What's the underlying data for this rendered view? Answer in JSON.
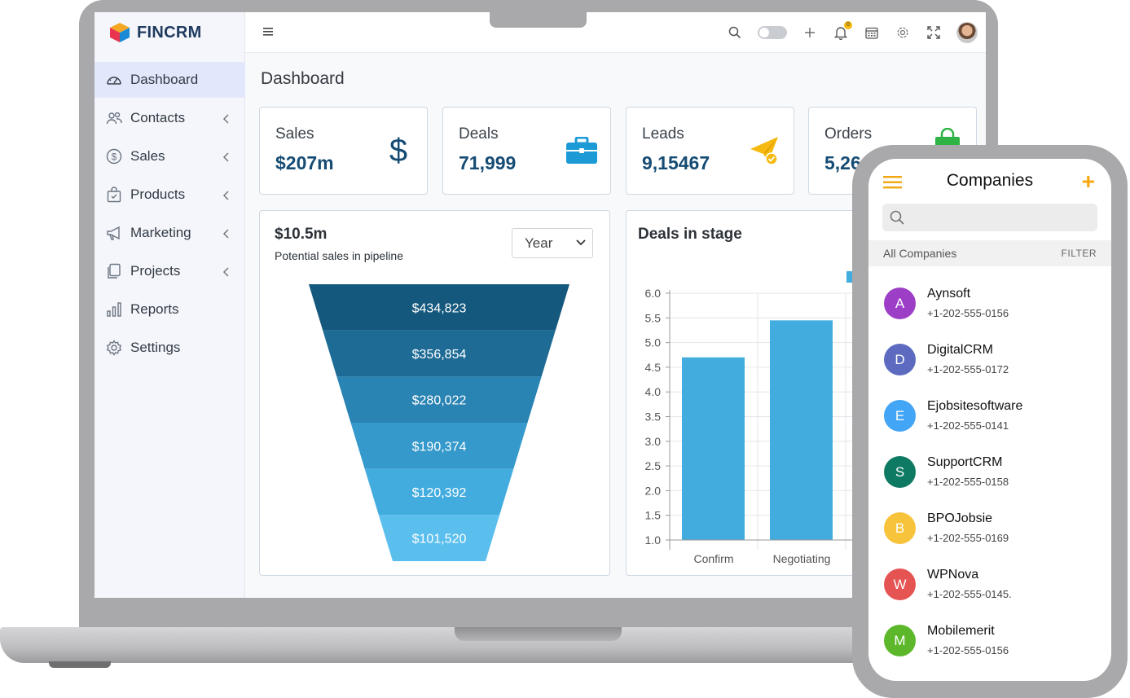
{
  "brand": {
    "name": "FINCRM"
  },
  "sidebar": {
    "items": [
      {
        "label": "Dashboard",
        "icon": "dashboard-icon",
        "active": true,
        "chevron": false
      },
      {
        "label": "Contacts",
        "icon": "users-icon",
        "active": false,
        "chevron": true
      },
      {
        "label": "Sales",
        "icon": "dollar-icon",
        "active": false,
        "chevron": true
      },
      {
        "label": "Products",
        "icon": "bag-icon",
        "active": false,
        "chevron": true
      },
      {
        "label": "Marketing",
        "icon": "megaphone-icon",
        "active": false,
        "chevron": true
      },
      {
        "label": "Projects",
        "icon": "copy-icon",
        "active": false,
        "chevron": true
      },
      {
        "label": "Reports",
        "icon": "bar-chart-icon",
        "active": false,
        "chevron": false
      },
      {
        "label": "Settings",
        "icon": "gear-icon",
        "active": false,
        "chevron": false
      }
    ]
  },
  "header": {
    "notification_count": "0"
  },
  "page": {
    "title": "Dashboard"
  },
  "stats": [
    {
      "label": "Sales",
      "value": "$207m",
      "icon": "dollar-sign-icon",
      "color": "#164c74"
    },
    {
      "label": "Deals",
      "value": "71,999",
      "icon": "briefcase-icon",
      "color": "#1b9ad6"
    },
    {
      "label": "Leads",
      "value": "9,15467",
      "icon": "paper-plane-icon",
      "color": "#f5b90f"
    },
    {
      "label": "Orders",
      "value": "5,26",
      "icon": "shopping-bag-icon",
      "color": "#2fb344"
    }
  ],
  "funnel": {
    "amount": "$10.5m",
    "subtitle": "Potential sales in pipeline",
    "period": "Year",
    "chart_data": {
      "type": "funnel",
      "values": [
        "$434,823",
        "$356,854",
        "$280,022",
        "$190,374",
        "$120,392",
        "$101,520"
      ],
      "colors": [
        "#15587d",
        "#1e6c96",
        "#2983b3",
        "#3599cb",
        "#43acdf",
        "#5bbfee"
      ]
    }
  },
  "deals": {
    "title": "Deals in stage",
    "chart_data": {
      "type": "bar",
      "categories": [
        "Confirm",
        "Negotiating"
      ],
      "values": [
        4.7,
        5.45
      ],
      "ylim": [
        1.0,
        6.0
      ],
      "yticks": [
        "1.0",
        "1.5",
        "2.0",
        "2.5",
        "3.0",
        "3.5",
        "4.0",
        "4.5",
        "5.0",
        "5.5",
        "6.0"
      ],
      "bar_color": "#43acdf",
      "grid": true
    }
  },
  "phone": {
    "title": "Companies",
    "add_label": "+",
    "search_placeholder": "",
    "all_label": "All Companies",
    "filter_label": "FILTER",
    "companies": [
      {
        "initial": "A",
        "name": "Aynsoft",
        "phone": "+1-202-555-0156",
        "color": "#9c3fc6"
      },
      {
        "initial": "D",
        "name": "DigitalCRM",
        "phone": "+1-202-555-0172",
        "color": "#5c6bc0"
      },
      {
        "initial": "E",
        "name": "Ejobsitesoftware",
        "phone": "+1-202-555-0141",
        "color": "#42a5f5"
      },
      {
        "initial": "S",
        "name": "SupportCRM",
        "phone": "+1-202-555-0158",
        "color": "#0f7a63"
      },
      {
        "initial": "B",
        "name": "BPOJobsie",
        "phone": "+1-202-555-0169",
        "color": "#f7c33b"
      },
      {
        "initial": "W",
        "name": "WPNova",
        "phone": "+1-202-555-0145.",
        "color": "#e65353"
      },
      {
        "initial": "M",
        "name": "Mobilemerit",
        "phone": "+1-202-555-0156",
        "color": "#5cb82a"
      }
    ]
  }
}
